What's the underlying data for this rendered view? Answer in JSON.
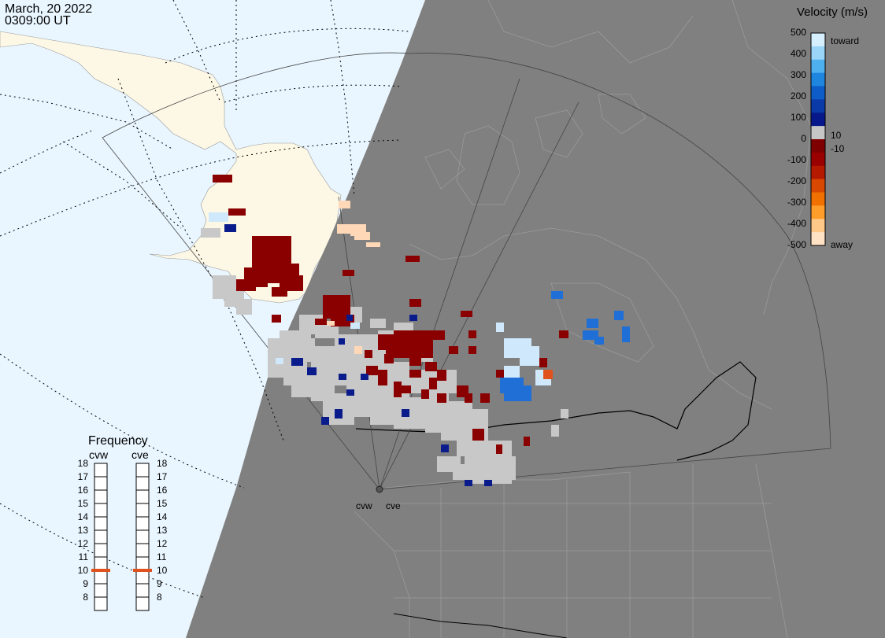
{
  "header": {
    "date": "March, 20 2022",
    "time": "0309:00 UT"
  },
  "colorbar": {
    "title": "Velocity (m/s)",
    "ticks": [
      "500",
      "400",
      "300",
      "200",
      "100",
      "0",
      "-100",
      "-200",
      "-300",
      "-400",
      "-500"
    ],
    "label_toward": "toward",
    "label_away": "away",
    "label_pos_threshold": "10",
    "label_neg_threshold": "-10",
    "colors": [
      "#d6efff",
      "#9ad4f7",
      "#4fb0ef",
      "#1f86e0",
      "#0e5cc8",
      "#0a3aa8",
      "#07188a",
      "#c6c6c6",
      "#7e0000",
      "#9a0000",
      "#b51a00",
      "#d94800",
      "#f07000",
      "#ff9d2b",
      "#ffc888",
      "#ffe1c4"
    ]
  },
  "frequency": {
    "title": "Frequency",
    "radars": [
      {
        "name": "cvw",
        "value_mhz": 10.5
      },
      {
        "name": "cve",
        "value_mhz": 10.5
      }
    ],
    "scale": [
      "18",
      "17",
      "16",
      "15",
      "14",
      "13",
      "12",
      "11",
      "10",
      "9",
      "8"
    ]
  },
  "map": {
    "radar_labels": [
      "cvw",
      "cve"
    ],
    "night_color": "#808080",
    "day_ocean_color": "#e9f6ff",
    "day_land_color": "#fdf8e6",
    "ground_scatter_color": "#c8c8c8"
  }
}
